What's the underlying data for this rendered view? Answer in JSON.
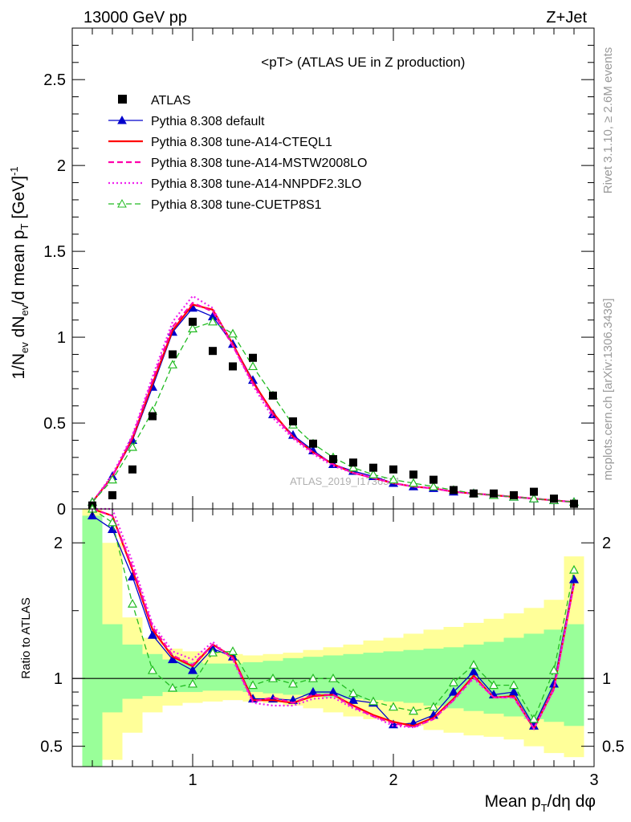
{
  "header": {
    "energy_label": "13000 GeV pp",
    "process_label": "Z+Jet"
  },
  "sidebar": {
    "rivet_label": "Rivet 3.1.10, ≥ 2.6M events",
    "url_label": "mcplots.cern.ch [arXiv:1306.3436]"
  },
  "chart_data": [
    {
      "type": "line",
      "title": "<pT>",
      "subtitle": "(ATLAS UE in Z production)",
      "watermark": "ATLAS_2019_I1736531",
      "xlabel": "Mean p_T/dη dφ",
      "ylabel": "1/N_ev dN_ev/d mean p_T [GeV]^-1",
      "xlim": [
        0.4,
        3.0
      ],
      "ylim": [
        0,
        2.8
      ],
      "xticks": [
        "1",
        "2",
        "3"
      ],
      "yticks": [
        "0",
        "0.5",
        "1",
        "1.5",
        "2",
        "2.5"
      ],
      "x": [
        0.5,
        0.6,
        0.7,
        0.8,
        0.9,
        1.0,
        1.1,
        1.2,
        1.3,
        1.4,
        1.5,
        1.6,
        1.7,
        1.8,
        1.9,
        2.0,
        2.1,
        2.2,
        2.3,
        2.4,
        2.5,
        2.6,
        2.7,
        2.8,
        2.9
      ],
      "data": {
        "name": "ATLAS",
        "values": [
          0.02,
          0.08,
          0.23,
          0.54,
          0.9,
          1.09,
          0.92,
          0.83,
          0.88,
          0.66,
          0.51,
          0.38,
          0.29,
          0.27,
          0.24,
          0.23,
          0.2,
          0.17,
          0.11,
          0.09,
          0.09,
          0.08,
          0.1,
          0.06,
          0.03
        ]
      },
      "series": [
        {
          "name": "Pythia 8.308 default",
          "color": "#0000cc",
          "style": "solid",
          "marker": "triangle-filled",
          "values": [
            0.04,
            0.19,
            0.4,
            0.71,
            1.03,
            1.17,
            1.12,
            0.96,
            0.75,
            0.55,
            0.43,
            0.34,
            0.26,
            0.22,
            0.19,
            0.15,
            0.13,
            0.12,
            0.1,
            0.09,
            0.08,
            0.07,
            0.06,
            0.05,
            0.04
          ]
        },
        {
          "name": "Pythia 8.308 tune-A14-CTEQL1",
          "color": "#ff0000",
          "style": "solid",
          "marker": "none",
          "values": [
            0.04,
            0.19,
            0.41,
            0.73,
            1.04,
            1.19,
            1.16,
            0.96,
            0.74,
            0.56,
            0.42,
            0.33,
            0.26,
            0.21,
            0.18,
            0.15,
            0.13,
            0.12,
            0.1,
            0.09,
            0.08,
            0.07,
            0.06,
            0.05,
            0.04
          ]
        },
        {
          "name": "Pythia 8.308 tune-A14-MSTW2008LO",
          "color": "#ff00aa",
          "style": "dashed",
          "marker": "none",
          "values": [
            0.04,
            0.19,
            0.42,
            0.75,
            1.06,
            1.2,
            1.15,
            0.95,
            0.73,
            0.55,
            0.42,
            0.33,
            0.26,
            0.21,
            0.18,
            0.15,
            0.13,
            0.12,
            0.1,
            0.09,
            0.08,
            0.07,
            0.06,
            0.05,
            0.04
          ]
        },
        {
          "name": "Pythia 8.308 tune-A14-NNPDF2.3LO",
          "color": "#ee22ee",
          "style": "dotted",
          "marker": "none",
          "values": [
            0.04,
            0.2,
            0.43,
            0.77,
            1.09,
            1.24,
            1.17,
            0.95,
            0.72,
            0.53,
            0.41,
            0.32,
            0.25,
            0.21,
            0.18,
            0.15,
            0.13,
            0.12,
            0.1,
            0.09,
            0.08,
            0.07,
            0.06,
            0.05,
            0.04
          ]
        },
        {
          "name": "Pythia 8.308 tune-CUETP8S1",
          "color": "#22bb22",
          "style": "dashed",
          "marker": "triangle-open",
          "values": [
            0.04,
            0.17,
            0.36,
            0.57,
            0.84,
            1.05,
            1.09,
            1.02,
            0.83,
            0.66,
            0.49,
            0.38,
            0.3,
            0.24,
            0.2,
            0.17,
            0.15,
            0.13,
            0.11,
            0.09,
            0.08,
            0.07,
            0.06,
            0.05,
            0.04
          ]
        }
      ]
    },
    {
      "type": "line",
      "ylabel": "Ratio to ATLAS",
      "xlim": [
        0.4,
        3.0
      ],
      "ylim": [
        0.35,
        2.25
      ],
      "yticks": [
        "0.5",
        "1",
        "2"
      ],
      "x": [
        0.5,
        0.6,
        0.7,
        0.8,
        0.9,
        1.0,
        1.1,
        1.2,
        1.3,
        1.4,
        1.5,
        1.6,
        1.7,
        1.8,
        1.9,
        2.0,
        2.1,
        2.2,
        2.3,
        2.4,
        2.5,
        2.6,
        2.7,
        2.8,
        2.9
      ],
      "band_inner": {
        "color": "#99ff99",
        "lower": [
          0.35,
          0.75,
          0.85,
          0.87,
          0.9,
          0.9,
          0.91,
          0.91,
          0.9,
          0.89,
          0.88,
          0.87,
          0.86,
          0.85,
          0.84,
          0.83,
          0.82,
          0.8,
          0.78,
          0.76,
          0.74,
          0.72,
          0.7,
          0.68,
          0.65
        ],
        "upper": [
          2.2,
          1.4,
          1.25,
          1.18,
          1.14,
          1.12,
          1.11,
          1.11,
          1.12,
          1.13,
          1.15,
          1.16,
          1.17,
          1.18,
          1.19,
          1.2,
          1.21,
          1.22,
          1.23,
          1.25,
          1.27,
          1.3,
          1.33,
          1.36,
          1.4
        ]
      },
      "band_outer": {
        "color": "#ffff99",
        "lower": [
          0.35,
          0.4,
          0.6,
          0.75,
          0.8,
          0.82,
          0.83,
          0.84,
          0.83,
          0.82,
          0.8,
          0.78,
          0.75,
          0.72,
          0.7,
          0.68,
          0.65,
          0.62,
          0.6,
          0.58,
          0.57,
          0.55,
          0.5,
          0.45,
          0.42
        ],
        "upper": [
          2.25,
          2.0,
          1.45,
          1.3,
          1.22,
          1.2,
          1.19,
          1.18,
          1.17,
          1.18,
          1.19,
          1.21,
          1.23,
          1.25,
          1.28,
          1.3,
          1.33,
          1.36,
          1.38,
          1.41,
          1.44,
          1.48,
          1.52,
          1.58,
          1.9
        ]
      },
      "reference": 1,
      "series": [
        {
          "name": "Pythia 8.308 default",
          "values": [
            2.2,
            2.1,
            1.75,
            1.32,
            1.14,
            1.06,
            1.22,
            1.16,
            0.85,
            0.85,
            0.84,
            0.9,
            0.9,
            0.84,
            0.82,
            0.66,
            0.67,
            0.73,
            0.9,
            1.05,
            0.88,
            0.9,
            0.65,
            0.96,
            1.73
          ]
        },
        {
          "name": "Pythia 8.308 tune-A14-CTEQL1",
          "values": [
            2.25,
            2.2,
            1.8,
            1.36,
            1.16,
            1.09,
            1.25,
            1.16,
            0.84,
            0.84,
            0.82,
            0.87,
            0.88,
            0.8,
            0.73,
            0.68,
            0.65,
            0.71,
            0.85,
            1.02,
            0.86,
            0.87,
            0.63,
            0.93,
            1.7
          ]
        },
        {
          "name": "Pythia 8.308 tune-A14-MSTW2008LO",
          "values": [
            2.25,
            2.2,
            1.82,
            1.38,
            1.17,
            1.1,
            1.25,
            1.15,
            0.83,
            0.86,
            0.82,
            0.88,
            0.88,
            0.79,
            0.72,
            0.67,
            0.64,
            0.7,
            0.84,
            1.01,
            0.86,
            0.86,
            0.63,
            0.92,
            1.7
          ]
        },
        {
          "name": "Pythia 8.308 tune-A14-NNPDF2.3LO",
          "values": [
            2.25,
            2.25,
            1.86,
            1.4,
            1.2,
            1.14,
            1.27,
            1.14,
            0.82,
            0.8,
            0.8,
            0.85,
            0.86,
            0.78,
            0.72,
            0.65,
            0.64,
            0.7,
            0.84,
            1.0,
            0.86,
            0.86,
            0.63,
            0.92,
            1.7
          ]
        },
        {
          "name": "Pythia 8.308 tune-CUETP8S1",
          "values": [
            2.25,
            2.15,
            1.55,
            1.06,
            0.93,
            0.96,
            1.19,
            1.2,
            0.95,
            1.0,
            0.96,
            1.0,
            1.0,
            0.89,
            0.83,
            0.79,
            0.76,
            0.79,
            0.97,
            1.1,
            0.95,
            0.95,
            0.7,
            1.06,
            1.8
          ]
        }
      ]
    }
  ]
}
